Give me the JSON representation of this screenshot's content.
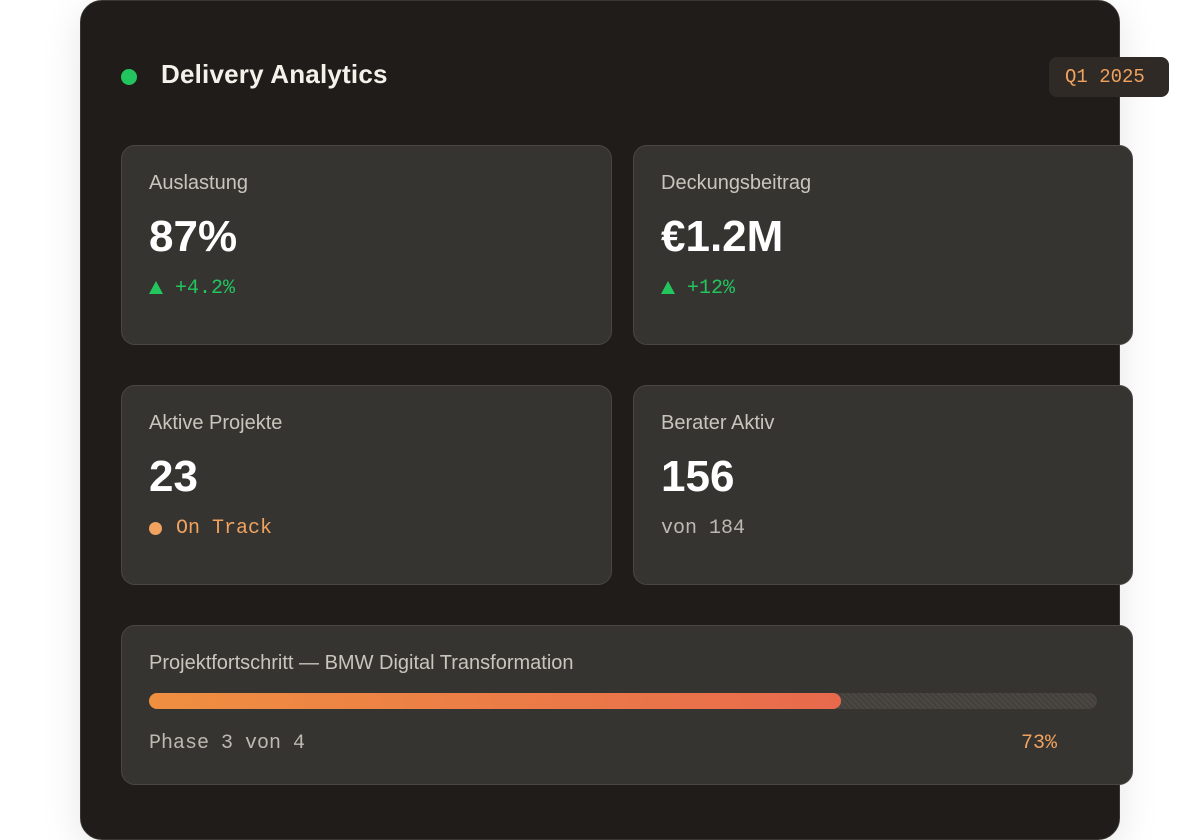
{
  "header": {
    "title": "Delivery Analytics",
    "period": "Q1 2025",
    "status_color": "#22c55e"
  },
  "kpis": [
    {
      "label": "Auslastung",
      "value": "87%",
      "sub": "+4.2%",
      "sub_kind": "trend-up"
    },
    {
      "label": "Deckungsbeitrag",
      "value": "€1.2M",
      "sub": "+12%",
      "sub_kind": "trend-up"
    },
    {
      "label": "Aktive Projekte",
      "value": "23",
      "sub": "On Track",
      "sub_kind": "status"
    },
    {
      "label": "Berater Aktiv",
      "value": "156",
      "sub": "von 184",
      "sub_kind": "plain"
    }
  ],
  "project": {
    "title": "Projektfortschritt — BMW Digital Transformation",
    "phase": "Phase 3 von 4",
    "percent_label": "73%",
    "progress": 0.73
  },
  "colors": {
    "accent_orange": "#f0a25e",
    "positive_green": "#22c55e",
    "panel_bg": "#1f1c1a",
    "card_bg": "#363431"
  }
}
